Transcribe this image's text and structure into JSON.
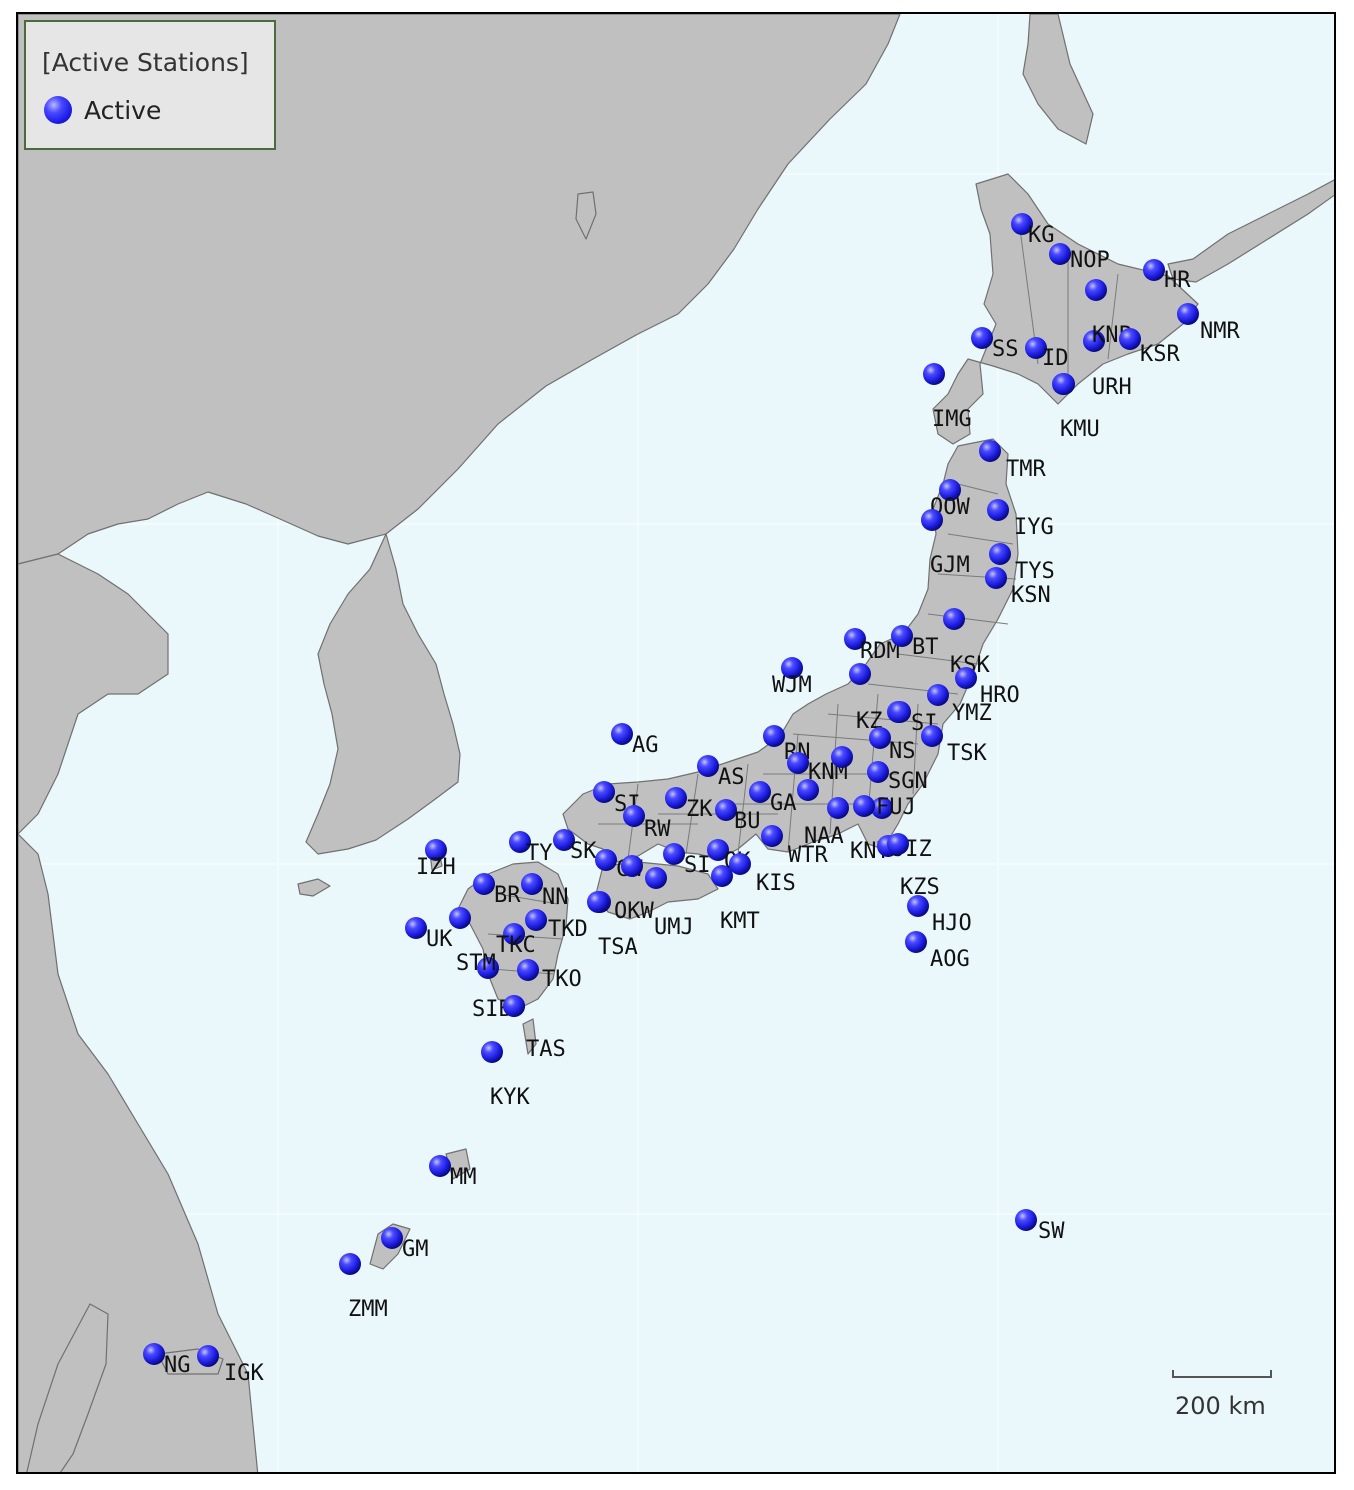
{
  "legend": {
    "title": "[Active Stations]",
    "item_label": "Active"
  },
  "scale": {
    "label": "200 km"
  },
  "colors": {
    "sea": "#eaf8fc",
    "land": "#c0c0c0",
    "station": "#2a2af0",
    "legend_border": "#4b6b3e"
  },
  "station_icon": "blue-sphere-marker",
  "stations": [
    {
      "code": "KG"
    },
    {
      "code": "NOP"
    },
    {
      "code": "HR"
    },
    {
      "code": ""
    },
    {
      "code": "NMR"
    },
    {
      "code": "SS"
    },
    {
      "code": "ID"
    },
    {
      "code": "KNP"
    },
    {
      "code": "KSR"
    },
    {
      "code": "IMG"
    },
    {
      "code": "URH"
    },
    {
      "code": "KMU"
    },
    {
      "code": "TMR"
    },
    {
      "code": "OOW"
    },
    {
      "code": "IYG"
    },
    {
      "code": "GJM"
    },
    {
      "code": "TYS"
    },
    {
      "code": "KSN"
    },
    {
      "code": "KSK"
    },
    {
      "code": "RDM"
    },
    {
      "code": "BT"
    },
    {
      "code": "WJM"
    },
    {
      "code": ""
    },
    {
      "code": "HRO"
    },
    {
      "code": "YMZ"
    },
    {
      "code": "KZ"
    },
    {
      "code": "SI"
    },
    {
      "code": "TSK"
    },
    {
      "code": "NS"
    },
    {
      "code": "AG"
    },
    {
      "code": "RN"
    },
    {
      "code": "KNM"
    },
    {
      "code": ""
    },
    {
      "code": "AS"
    },
    {
      "code": "SGN"
    },
    {
      "code": "SI"
    },
    {
      "code": "ZK"
    },
    {
      "code": "GA"
    },
    {
      "code": ""
    },
    {
      "code": "FUJ"
    },
    {
      "code": "RW"
    },
    {
      "code": "BU"
    },
    {
      "code": "NAA"
    },
    {
      "code": "KNY"
    },
    {
      "code": "JIZ"
    },
    {
      "code": "IZH"
    },
    {
      "code": "TY"
    },
    {
      "code": "SK"
    },
    {
      "code": "CW"
    },
    {
      "code": "SI"
    },
    {
      "code": "OK"
    },
    {
      "code": "WTR"
    },
    {
      "code": "KIS"
    },
    {
      "code": "KZS"
    },
    {
      "code": "BR"
    },
    {
      "code": "NN"
    },
    {
      "code": ""
    },
    {
      "code": "OKW"
    },
    {
      "code": "UMJ"
    },
    {
      "code": "KMT"
    },
    {
      "code": "TSA"
    },
    {
      "code": "UK"
    },
    {
      "code": "TKD"
    },
    {
      "code": "TKC"
    },
    {
      "code": ""
    },
    {
      "code": "HJO"
    },
    {
      "code": "AOG"
    },
    {
      "code": "STM"
    },
    {
      "code": "TKO"
    },
    {
      "code": "SIB"
    },
    {
      "code": "TAS"
    },
    {
      "code": "KYK"
    },
    {
      "code": "MM"
    },
    {
      "code": "GM"
    },
    {
      "code": "ZMM"
    },
    {
      "code": "SW"
    },
    {
      "code": "NG"
    },
    {
      "code": "IGK"
    }
  ]
}
